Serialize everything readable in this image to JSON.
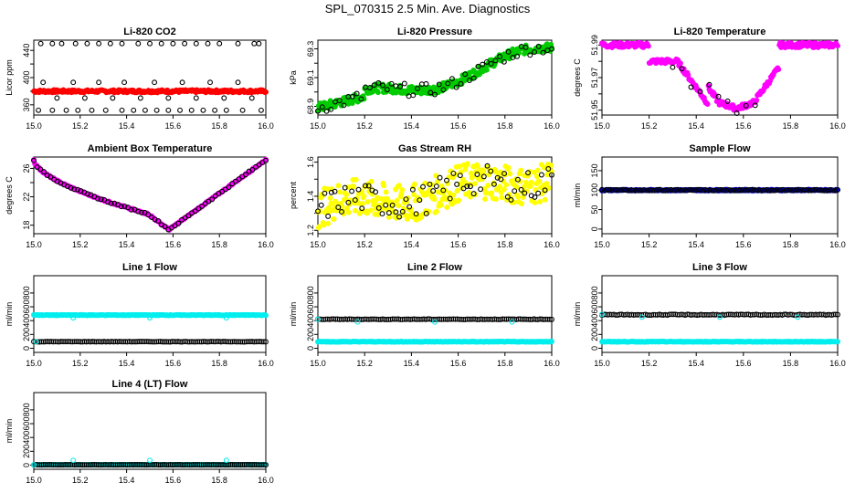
{
  "figure": {
    "title": "SPL_070315  2.5 Min. Ave. Diagnostics"
  },
  "chart_data": [
    {
      "id": "co2",
      "type": "scatter",
      "title": "Li-820 CO2",
      "ylabel": "Licor ppm",
      "xlim": [
        15.0,
        16.0
      ],
      "ylim": [
        345,
        455
      ],
      "xticks": [
        15.0,
        15.2,
        15.4,
        15.6,
        15.8,
        16.0
      ],
      "yticks": [
        360,
        380,
        400,
        420,
        440
      ],
      "ytick_labels": [
        "360",
        "",
        "400",
        "",
        "440"
      ],
      "series": [
        {
          "name": "dense",
          "color": "#ff0000",
          "pattern": "band",
          "x_range": [
            15.0,
            16.0
          ],
          "y_center": 380,
          "y_spread": 2,
          "density": 260,
          "trend": "flat"
        },
        {
          "name": "ring-high",
          "color": "#000000",
          "pattern": "points",
          "x": [
            15.03,
            15.08,
            15.12,
            15.18,
            15.23,
            15.28,
            15.33,
            15.38,
            15.45,
            15.5,
            15.55,
            15.6,
            15.65,
            15.7,
            15.75,
            15.8,
            15.88,
            15.95,
            15.97
          ],
          "y": [
            450,
            450,
            450,
            450,
            450,
            450,
            450,
            450,
            450,
            450,
            450,
            450,
            450,
            450,
            450,
            450,
            450,
            450,
            450
          ]
        },
        {
          "name": "ring-low",
          "color": "#000000",
          "pattern": "points",
          "x": [
            15.02,
            15.08,
            15.14,
            15.19,
            15.25,
            15.31,
            15.38,
            15.43,
            15.48,
            15.53,
            15.58,
            15.63,
            15.68,
            15.73,
            15.78,
            15.83,
            15.9,
            15.98
          ],
          "y": [
            352,
            352,
            352,
            352,
            352,
            352,
            352,
            352,
            352,
            352,
            352,
            352,
            352,
            352,
            352,
            352,
            352,
            352
          ]
        },
        {
          "name": "ring-mid",
          "color": "#000000",
          "pattern": "points",
          "x": [
            15.04,
            15.1,
            15.17,
            15.22,
            15.28,
            15.34,
            15.39,
            15.46,
            15.52,
            15.58,
            15.64,
            15.7,
            15.76,
            15.82,
            15.88,
            15.94
          ],
          "y": [
            393,
            370,
            393,
            370,
            393,
            370,
            393,
            370,
            393,
            370,
            393,
            370,
            393,
            370,
            393,
            370
          ]
        }
      ]
    },
    {
      "id": "pressure",
      "type": "scatter",
      "title": "Li-820 Pressure",
      "ylabel": "kPa",
      "xlim": [
        15.0,
        16.0
      ],
      "ylim": [
        68.84,
        69.36
      ],
      "xticks": [
        15.0,
        15.2,
        15.4,
        15.6,
        15.8,
        16.0
      ],
      "yticks": [
        68.9,
        69.0,
        69.1,
        69.2,
        69.3
      ],
      "ytick_labels": [
        "68.9",
        "",
        "69.1",
        "",
        "69.3"
      ],
      "series": [
        {
          "name": "dense",
          "color": "#00cc00",
          "pattern": "band",
          "x_range": [
            15.0,
            16.0
          ],
          "y_center": 69.05,
          "y_spread": 0.03,
          "density": 300,
          "trend": "pressure"
        },
        {
          "name": "ring",
          "color": "#000000",
          "pattern": "scatter",
          "x_range": [
            15.0,
            16.0
          ],
          "y_center": 69.05,
          "y_spread": 0.02,
          "density": 55,
          "trend": "pressure"
        }
      ]
    },
    {
      "id": "licor-temp",
      "type": "scatter",
      "title": "Li-820 Temperature",
      "ylabel": "degrees C",
      "xlim": [
        15.0,
        16.0
      ],
      "ylim": [
        51.947,
        51.993
      ],
      "xticks": [
        15.0,
        15.2,
        15.4,
        15.6,
        15.8,
        16.0
      ],
      "yticks": [
        51.95,
        51.96,
        51.97,
        51.98,
        51.99
      ],
      "ytick_labels": [
        "51.95",
        "",
        "51.97",
        "",
        "51.99"
      ],
      "series": [
        {
          "name": "dense",
          "color": "#ff00ff",
          "pattern": "band",
          "x_range": [
            15.0,
            16.0
          ],
          "y_center": 51.97,
          "y_spread": 0.0015,
          "density": 280,
          "trend": "licor-temp"
        },
        {
          "name": "ring",
          "color": "#000000",
          "pattern": "scatter",
          "x_range": [
            15.3,
            15.65
          ],
          "y_center": 51.97,
          "y_spread": 0.002,
          "density": 10,
          "trend": "licor-temp"
        }
      ]
    },
    {
      "id": "ambient-box-temp",
      "type": "scatter",
      "title": "Ambient Box Temperature",
      "ylabel": "degrees C",
      "xlim": [
        15.0,
        16.0
      ],
      "ylim": [
        16.8,
        27.6
      ],
      "xticks": [
        15.0,
        15.2,
        15.4,
        15.6,
        15.8,
        16.0
      ],
      "yticks": [
        18,
        20,
        22,
        24,
        26
      ],
      "ytick_labels": [
        "18",
        "",
        "22",
        "",
        "26"
      ],
      "series": [
        {
          "name": "dense",
          "color": "#ff00ff",
          "pattern": "band",
          "x_range": [
            15.0,
            16.0
          ],
          "y_center": 20,
          "y_spread": 0.1,
          "density": 220,
          "trend": "ambient"
        },
        {
          "name": "ring",
          "color": "#000000",
          "pattern": "scatter",
          "x_range": [
            15.0,
            16.0
          ],
          "y_center": 20,
          "y_spread": 0.05,
          "density": 70,
          "trend": "ambient"
        }
      ]
    },
    {
      "id": "gas-stream-rh",
      "type": "scatter",
      "title": "Gas Stream RH",
      "ylabel": "percent",
      "xlim": [
        15.0,
        16.0
      ],
      "ylim": [
        1.18,
        1.63
      ],
      "xticks": [
        15.0,
        15.2,
        15.4,
        15.6,
        15.8,
        16.0
      ],
      "yticks": [
        1.2,
        1.3,
        1.4,
        1.5,
        1.6
      ],
      "ytick_labels": [
        "1.2",
        "",
        "1.4",
        "",
        "1.6"
      ],
      "series": [
        {
          "name": "dense",
          "color": "#ffff00",
          "pattern": "scatter",
          "x_range": [
            15.0,
            16.0
          ],
          "y_center": 1.4,
          "y_spread": 0.05,
          "density": 320,
          "trend": "rh"
        },
        {
          "name": "ring",
          "color": "#000000",
          "pattern": "scatter",
          "x_range": [
            15.0,
            16.0
          ],
          "y_center": 1.4,
          "y_spread": 0.04,
          "density": 70,
          "trend": "rh"
        }
      ]
    },
    {
      "id": "sample-flow",
      "type": "scatter",
      "title": "Sample Flow",
      "ylabel": "ml/min",
      "xlim": [
        15.0,
        16.0
      ],
      "ylim": [
        -12,
        185
      ],
      "xticks": [
        15.0,
        15.2,
        15.4,
        15.6,
        15.8,
        16.0
      ],
      "yticks": [
        0,
        50,
        100,
        150
      ],
      "ytick_labels": [
        "0",
        "50",
        "100",
        "150"
      ],
      "series": [
        {
          "name": "dense",
          "color": "#0000cc",
          "pattern": "band",
          "x_range": [
            15.0,
            16.0
          ],
          "y_center": 100,
          "y_spread": 1.5,
          "density": 300,
          "trend": "flat"
        },
        {
          "name": "ring",
          "color": "#000000",
          "pattern": "band",
          "x_range": [
            15.0,
            16.0
          ],
          "y_center": 100,
          "y_spread": 1.2,
          "density": 90,
          "trend": "flat"
        }
      ]
    },
    {
      "id": "line1-flow",
      "type": "scatter",
      "title": "Line 1 Flow",
      "ylabel": "ml/min",
      "xlim": [
        15.0,
        16.0
      ],
      "ylim": [
        -60,
        1050
      ],
      "xticks": [
        15.0,
        15.2,
        15.4,
        15.6,
        15.8,
        16.0
      ],
      "yticks": [
        0,
        200,
        400,
        600,
        800
      ],
      "ytick_labels": [
        "0",
        "200",
        "400",
        "600",
        "800"
      ],
      "series": [
        {
          "name": "upper",
          "color": "#00eeee",
          "pattern": "band",
          "x_range": [
            15.0,
            16.0
          ],
          "y_center": 480,
          "y_spread": 5,
          "density": 300,
          "trend": "flat"
        },
        {
          "name": "lower",
          "color": "#000000",
          "pattern": "band",
          "x_range": [
            15.0,
            16.0
          ],
          "y_center": 95,
          "y_spread": 3,
          "density": 120,
          "trend": "flat"
        },
        {
          "name": "lower-dense",
          "color": "#00eeee",
          "pattern": "points",
          "x": [
            15.01
          ],
          "y": [
            95
          ]
        },
        {
          "name": "outliers",
          "color": "#00eeee",
          "pattern": "points",
          "x": [
            15.17,
            15.5,
            15.83
          ],
          "y": [
            440,
            440,
            440
          ]
        }
      ]
    },
    {
      "id": "line2-flow",
      "type": "scatter",
      "title": "Line 2 Flow",
      "ylabel": "ml/min",
      "xlim": [
        15.0,
        16.0
      ],
      "ylim": [
        -60,
        1050
      ],
      "xticks": [
        15.0,
        15.2,
        15.4,
        15.6,
        15.8,
        16.0
      ],
      "yticks": [
        0,
        200,
        400,
        600,
        800
      ],
      "ytick_labels": [
        "0",
        "200",
        "400",
        "600",
        "800"
      ],
      "series": [
        {
          "name": "lower",
          "color": "#00eeee",
          "pattern": "band",
          "x_range": [
            15.0,
            16.0
          ],
          "y_center": 95,
          "y_spread": 4,
          "density": 300,
          "trend": "flat"
        },
        {
          "name": "upper",
          "color": "#000000",
          "pattern": "band",
          "x_range": [
            15.0,
            16.0
          ],
          "y_center": 420,
          "y_spread": 4,
          "density": 120,
          "trend": "flat"
        },
        {
          "name": "upper-start",
          "color": "#00eeee",
          "pattern": "points",
          "x": [
            15.0
          ],
          "y": [
            420
          ]
        },
        {
          "name": "outliers",
          "color": "#00eeee",
          "pattern": "points",
          "x": [
            15.17,
            15.5,
            15.83
          ],
          "y": [
            380,
            380,
            380
          ]
        }
      ]
    },
    {
      "id": "line3-flow",
      "type": "scatter",
      "title": "Line 3 Flow",
      "ylabel": "ml/min",
      "xlim": [
        15.0,
        16.0
      ],
      "ylim": [
        -60,
        1050
      ],
      "xticks": [
        15.0,
        15.2,
        15.4,
        15.6,
        15.8,
        16.0
      ],
      "yticks": [
        0,
        200,
        400,
        600,
        800
      ],
      "ytick_labels": [
        "0",
        "200",
        "400",
        "600",
        "800"
      ],
      "series": [
        {
          "name": "lower",
          "color": "#00eeee",
          "pattern": "band",
          "x_range": [
            15.0,
            16.0
          ],
          "y_center": 95,
          "y_spread": 4,
          "density": 300,
          "trend": "flat"
        },
        {
          "name": "upper",
          "color": "#000000",
          "pattern": "band",
          "x_range": [
            15.0,
            16.0
          ],
          "y_center": 485,
          "y_spread": 6,
          "density": 120,
          "trend": "flat"
        },
        {
          "name": "upper-start",
          "color": "#00eeee",
          "pattern": "points",
          "x": [
            15.0
          ],
          "y": [
            490
          ]
        },
        {
          "name": "outliers",
          "color": "#00eeee",
          "pattern": "points",
          "x": [
            15.17,
            15.5,
            15.83
          ],
          "y": [
            450,
            450,
            450
          ]
        }
      ]
    },
    {
      "id": "line4-flow",
      "type": "scatter",
      "title": "Line 4 (LT) Flow",
      "ylabel": "ml/min",
      "xlim": [
        15.0,
        16.0
      ],
      "ylim": [
        -60,
        1050
      ],
      "xticks": [
        15.0,
        15.2,
        15.4,
        15.6,
        15.8,
        16.0
      ],
      "yticks": [
        0,
        200,
        400,
        600,
        800
      ],
      "ytick_labels": [
        "0",
        "200",
        "400",
        "600",
        "800"
      ],
      "series": [
        {
          "name": "base",
          "color": "#00eeee",
          "pattern": "band",
          "x_range": [
            15.0,
            16.0
          ],
          "y_center": 5,
          "y_spread": 2,
          "density": 300,
          "trend": "flat"
        },
        {
          "name": "ring",
          "color": "#000000",
          "pattern": "band",
          "x_range": [
            15.0,
            16.0
          ],
          "y_center": 5,
          "y_spread": 2,
          "density": 120,
          "trend": "flat"
        },
        {
          "name": "start",
          "color": "#00eeee",
          "pattern": "points",
          "x": [
            15.0
          ],
          "y": [
            5
          ]
        },
        {
          "name": "outliers",
          "color": "#00eeee",
          "pattern": "points",
          "x": [
            15.17,
            15.5,
            15.83
          ],
          "y": [
            70,
            70,
            70
          ]
        }
      ]
    }
  ]
}
